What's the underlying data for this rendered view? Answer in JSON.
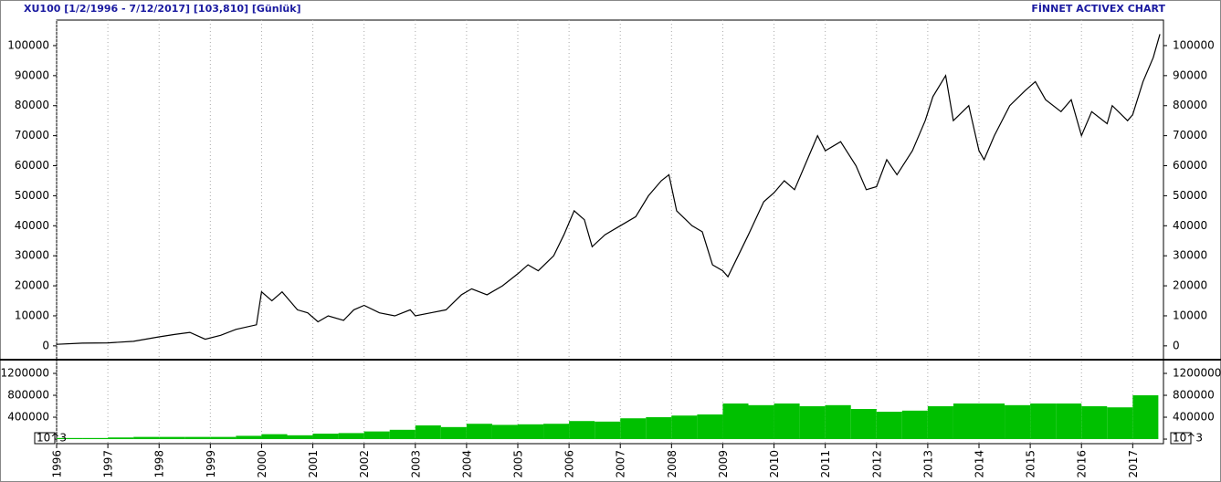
{
  "header": {
    "title": "XU100  [1/2/1996 - 7/12/2017]  [103,810]  [Günlük]",
    "brand": "FİNNET ACTIVEX CHART"
  },
  "chart_data": [
    {
      "type": "line",
      "xlim": [
        1996,
        2017.6
      ],
      "xticks": [
        1996,
        1997,
        1998,
        1999,
        2000,
        2001,
        2002,
        2003,
        2004,
        2005,
        2006,
        2007,
        2008,
        2009,
        2010,
        2011,
        2012,
        2013,
        2014,
        2015,
        2016,
        2017
      ],
      "ylim": [
        -4300,
        108500
      ],
      "yticks": [
        0,
        10000,
        20000,
        30000,
        40000,
        50000,
        60000,
        70000,
        80000,
        90000,
        100000
      ],
      "grid": true,
      "series": [
        {
          "color": "#000000",
          "x": [
            1996.0,
            1996.5,
            1997.0,
            1997.5,
            1998.0,
            1998.3,
            1998.6,
            1998.9,
            1999.2,
            1999.5,
            1999.9,
            2000.0,
            2000.2,
            2000.4,
            2000.7,
            2000.9,
            2001.1,
            2001.3,
            2001.6,
            2001.8,
            2002.0,
            2002.3,
            2002.6,
            2002.9,
            2003.0,
            2003.3,
            2003.6,
            2003.9,
            2004.1,
            2004.4,
            2004.7,
            2005.0,
            2005.2,
            2005.4,
            2005.7,
            2005.9,
            2006.1,
            2006.3,
            2006.45,
            2006.7,
            2007.0,
            2007.3,
            2007.55,
            2007.8,
            2007.95,
            2008.1,
            2008.4,
            2008.6,
            2008.8,
            2009.0,
            2009.1,
            2009.3,
            2009.5,
            2009.8,
            2010.0,
            2010.2,
            2010.4,
            2010.6,
            2010.85,
            2011.0,
            2011.3,
            2011.6,
            2011.8,
            2012.0,
            2012.2,
            2012.4,
            2012.7,
            2012.95,
            2013.1,
            2013.35,
            2013.5,
            2013.8,
            2014.0,
            2014.1,
            2014.3,
            2014.6,
            2014.9,
            2015.1,
            2015.3,
            2015.6,
            2015.8,
            2016.0,
            2016.2,
            2016.5,
            2016.6,
            2016.9,
            2017.0,
            2017.2,
            2017.4,
            2017.53
          ],
          "values": [
            500,
            900,
            1000,
            1500,
            3000,
            3800,
            4500,
            2200,
            3500,
            5500,
            7000,
            18000,
            15000,
            18000,
            12000,
            11000,
            8000,
            10000,
            8500,
            12000,
            13500,
            11000,
            10000,
            12000,
            10000,
            11000,
            12000,
            17000,
            19000,
            17000,
            20000,
            24000,
            27000,
            25000,
            30000,
            37000,
            45000,
            42000,
            33000,
            37000,
            40000,
            43000,
            50000,
            55000,
            57000,
            45000,
            40000,
            38000,
            27000,
            25000,
            23000,
            30000,
            37000,
            48000,
            51000,
            55000,
            52000,
            60000,
            70000,
            65000,
            68000,
            60000,
            52000,
            53000,
            62000,
            57000,
            65000,
            75000,
            83000,
            90000,
            75000,
            80000,
            65000,
            62000,
            70000,
            80000,
            85000,
            88000,
            82000,
            78000,
            82000,
            70000,
            78000,
            74000,
            80000,
            75000,
            77000,
            88000,
            96000,
            103810
          ]
        }
      ]
    },
    {
      "type": "histogram",
      "unit_label": "10^3",
      "color": "#00c000",
      "ylim": [
        -83000,
        1417000
      ],
      "yticks": [
        0,
        400000,
        800000,
        1200000
      ],
      "bins": [
        1996,
        1996.5,
        1997,
        1997.5,
        1998,
        1998.5,
        1999,
        1999.5,
        2000,
        2000.5,
        2001,
        2001.5,
        2002,
        2002.5,
        2003,
        2003.5,
        2004,
        2004.5,
        2005,
        2005.5,
        2006,
        2006.5,
        2007,
        2007.5,
        2008,
        2008.5,
        2009,
        2009.5,
        2010,
        2010.5,
        2011,
        2011.5,
        2012,
        2012.5,
        2013,
        2013.5,
        2014,
        2014.5,
        2015,
        2015.5,
        2016,
        2016.5,
        2017,
        2017.5
      ],
      "values": [
        20000,
        20000,
        30000,
        40000,
        40000,
        40000,
        40000,
        60000,
        90000,
        70000,
        100000,
        110000,
        140000,
        170000,
        250000,
        220000,
        280000,
        260000,
        270000,
        280000,
        330000,
        320000,
        380000,
        400000,
        430000,
        450000,
        650000,
        620000,
        650000,
        600000,
        620000,
        550000,
        500000,
        520000,
        600000,
        650000,
        650000,
        620000,
        650000,
        650000,
        600000,
        580000,
        800000
      ]
    }
  ]
}
